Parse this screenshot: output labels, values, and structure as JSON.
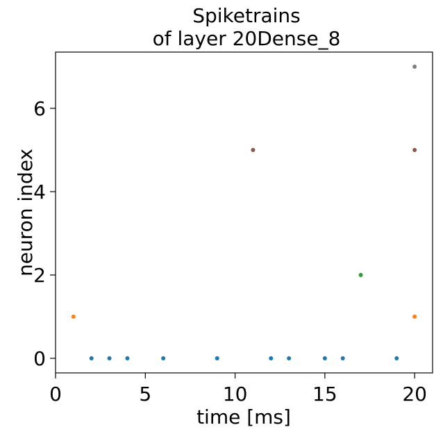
{
  "chart_data": {
    "type": "scatter",
    "title_line1": "Spiketrains",
    "title_line2": "of layer 20Dense_8",
    "xlabel": "time [ms]",
    "ylabel": "neuron index",
    "xlim": [
      0,
      21
    ],
    "ylim": [
      -0.35,
      7.35
    ],
    "xticks": [
      0,
      5,
      10,
      15,
      20
    ],
    "yticks": [
      0,
      2,
      4,
      6
    ],
    "grid": false,
    "series": [
      {
        "neuron": 0,
        "color": "#1f77b4",
        "x": [
          2,
          3,
          4,
          6,
          9,
          12,
          13,
          15,
          16,
          19
        ]
      },
      {
        "neuron": 1,
        "color": "#ff7f0e",
        "x": [
          1,
          20
        ]
      },
      {
        "neuron": 2,
        "color": "#2ca02c",
        "x": [
          17
        ]
      },
      {
        "neuron": 5,
        "color": "#8c564b",
        "x": [
          11,
          20
        ]
      },
      {
        "neuron": 7,
        "color": "#7f7f7f",
        "x": [
          20
        ]
      }
    ]
  }
}
